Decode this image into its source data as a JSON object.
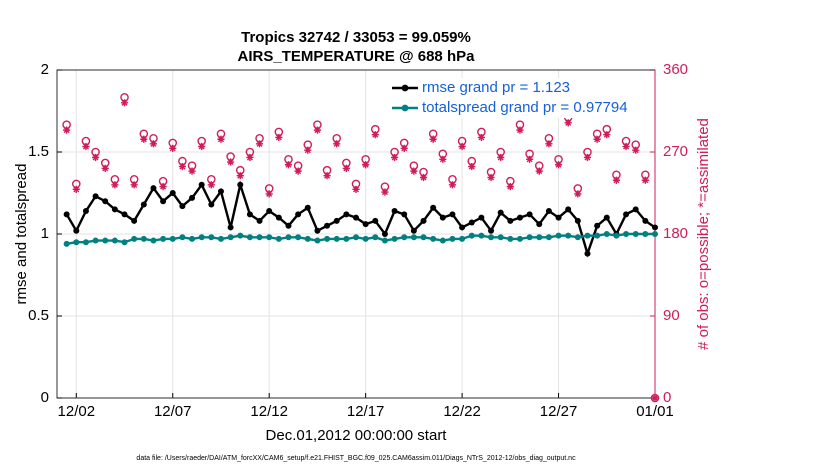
{
  "chart_data": {
    "type": "line",
    "title": "Tropics 32742 / 33053 = 99.059%",
    "subtitle": "AIRS_TEMPERATURE @ 688 hPa",
    "x_label": "Dec.01,2012 00:00:00 start",
    "y_label": "rmse and totalspread",
    "y2_label": "# of obs: o=possible; *=assimilated",
    "footnote": "data file: /Users/raeder/DAI/ATM_forcXX/CAM6_setup/f.e21.FHIST_BGC.f09_025.CAM6assim.011/Diags_NTrS_2012-12/obs_diag_output.nc",
    "xlim": [
      0,
      31
    ],
    "xticks": [
      {
        "value": 1,
        "label": "12/02"
      },
      {
        "value": 6,
        "label": "12/07"
      },
      {
        "value": 11,
        "label": "12/12"
      },
      {
        "value": 16,
        "label": "12/17"
      },
      {
        "value": 21,
        "label": "12/22"
      },
      {
        "value": 26,
        "label": "12/27"
      },
      {
        "value": 31,
        "label": "01/01"
      }
    ],
    "ylim": [
      0,
      2
    ],
    "yticks": [
      0,
      0.5,
      1,
      1.5,
      2
    ],
    "y2lim": [
      0,
      360
    ],
    "y2ticks": [
      0,
      90,
      180,
      270,
      360
    ],
    "y2_color": "#d01c5b",
    "grid": true,
    "legend": "top-right",
    "x": [
      0.5,
      1,
      1.5,
      2,
      2.5,
      3,
      3.5,
      4,
      4.5,
      5,
      5.5,
      6,
      6.5,
      7,
      7.5,
      8,
      8.5,
      9,
      9.5,
      10,
      10.5,
      11,
      11.5,
      12,
      12.5,
      13,
      13.5,
      14,
      14.5,
      15,
      15.5,
      16,
      16.5,
      17,
      17.5,
      18,
      18.5,
      19,
      19.5,
      20,
      20.5,
      21,
      21.5,
      22,
      22.5,
      23,
      23.5,
      24,
      24.5,
      25,
      25.5,
      26,
      26.5,
      27,
      27.5,
      28,
      28.5,
      29,
      29.5,
      30,
      30.5,
      31
    ],
    "series": [
      {
        "name": "rmse grand pr = 1.123",
        "color": "#000000",
        "values": [
          1.12,
          1.02,
          1.14,
          1.23,
          1.2,
          1.15,
          1.12,
          1.08,
          1.18,
          1.28,
          1.2,
          1.25,
          1.17,
          1.22,
          1.3,
          1.18,
          1.26,
          1.04,
          1.3,
          1.12,
          1.08,
          1.14,
          1.1,
          1.05,
          1.12,
          1.16,
          1.02,
          1.05,
          1.08,
          1.12,
          1.1,
          1.06,
          1.08,
          1.0,
          1.14,
          1.12,
          1.02,
          1.08,
          1.16,
          1.1,
          1.12,
          1.04,
          1.07,
          1.1,
          1.02,
          1.13,
          1.08,
          1.1,
          1.12,
          1.06,
          1.14,
          1.1,
          1.15,
          1.08,
          0.88,
          1.05,
          1.1,
          1.0,
          1.12,
          1.15,
          1.08,
          1.04
        ]
      },
      {
        "name": "totalspread grand pr = 0.97794",
        "color": "#008080",
        "values": [
          0.94,
          0.95,
          0.95,
          0.96,
          0.96,
          0.96,
          0.95,
          0.97,
          0.97,
          0.96,
          0.97,
          0.97,
          0.98,
          0.97,
          0.98,
          0.98,
          0.97,
          0.98,
          0.99,
          0.98,
          0.98,
          0.98,
          0.97,
          0.98,
          0.98,
          0.97,
          0.96,
          0.97,
          0.97,
          0.97,
          0.98,
          0.97,
          0.98,
          0.96,
          0.97,
          0.98,
          0.98,
          0.98,
          0.97,
          0.96,
          0.97,
          0.97,
          0.99,
          0.99,
          0.98,
          0.98,
          0.97,
          0.97,
          0.98,
          0.98,
          0.98,
          0.99,
          0.99,
          0.98,
          0.99,
          0.99,
          1.0,
          0.99,
          1.0,
          1.0,
          1.0,
          1.0
        ]
      }
    ],
    "obs": [
      {
        "marker": "o",
        "axis": "y2",
        "color": "#d01c5b",
        "values": [
          300,
          235,
          282,
          270,
          258,
          240,
          330,
          240,
          290,
          285,
          238,
          280,
          260,
          255,
          282,
          240,
          290,
          265,
          250,
          270,
          285,
          230,
          292,
          262,
          255,
          278,
          300,
          250,
          285,
          258,
          235,
          262,
          295,
          232,
          270,
          280,
          255,
          248,
          290,
          268,
          240,
          282,
          260,
          292,
          248,
          270,
          238,
          300,
          268,
          255,
          285,
          262,
          308,
          230,
          270,
          290,
          295,
          245,
          282,
          278,
          245,
          0
        ]
      },
      {
        "marker": "*",
        "axis": "y2",
        "color": "#d01c5b",
        "values": [
          294,
          229,
          276,
          264,
          252,
          234,
          324,
          234,
          284,
          279,
          232,
          274,
          254,
          249,
          276,
          234,
          284,
          259,
          244,
          264,
          279,
          224,
          286,
          256,
          249,
          272,
          294,
          244,
          279,
          252,
          229,
          256,
          289,
          226,
          264,
          274,
          249,
          242,
          284,
          262,
          234,
          276,
          254,
          286,
          242,
          264,
          232,
          294,
          262,
          249,
          279,
          256,
          302,
          224,
          264,
          284,
          289,
          239,
          276,
          272,
          239,
          0
        ]
      }
    ]
  }
}
